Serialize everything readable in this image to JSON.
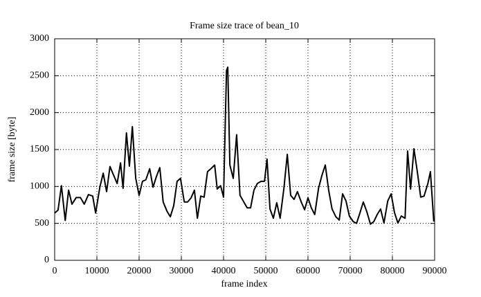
{
  "chart_data": {
    "type": "line",
    "title": "Frame size trace of bean_10",
    "x_label": "frame index",
    "y_label": "frame size [byte]",
    "xlim": [
      0,
      90000
    ],
    "ylim": [
      0,
      3000
    ],
    "xticks": [
      0,
      10000,
      20000,
      30000,
      40000,
      50000,
      60000,
      70000,
      80000,
      90000
    ],
    "yticks": [
      0,
      500,
      1000,
      1500,
      2000,
      2500,
      3000
    ],
    "grid": true,
    "x": [
      0,
      800,
      1600,
      2500,
      3300,
      4100,
      5100,
      6100,
      7000,
      8000,
      9000,
      9700,
      10700,
      11500,
      12300,
      13100,
      13900,
      14800,
      15600,
      16200,
      17000,
      17700,
      18400,
      19200,
      20000,
      20800,
      21600,
      22500,
      23300,
      24100,
      24900,
      25700,
      26600,
      27400,
      28200,
      29000,
      29800,
      30700,
      31500,
      32300,
      33100,
      33800,
      34600,
      35400,
      36200,
      37000,
      37900,
      38500,
      39300,
      40000,
      40700,
      41000,
      41500,
      42300,
      43100,
      43900,
      44800,
      45600,
      46400,
      47200,
      48000,
      48900,
      49700,
      50300,
      51000,
      51800,
      52600,
      53400,
      54300,
      55100,
      55900,
      56700,
      57500,
      58400,
      59200,
      60000,
      60800,
      61600,
      62500,
      63300,
      64100,
      64900,
      65700,
      66600,
      67400,
      68200,
      69000,
      69800,
      70700,
      71500,
      72300,
      73100,
      73900,
      74800,
      75600,
      76400,
      77200,
      78000,
      78900,
      79700,
      80500,
      81300,
      82100,
      83000,
      83600,
      84300,
      85100,
      85900,
      86700,
      87500,
      88400,
      89000,
      89800
    ],
    "series": [
      {
        "color": "#000000",
        "values": [
          640,
          680,
          1010,
          540,
          950,
          760,
          850,
          850,
          760,
          890,
          870,
          640,
          990,
          1180,
          930,
          1270,
          1160,
          1040,
          1320,
          975,
          1725,
          1275,
          1810,
          1110,
          880,
          1070,
          1090,
          1240,
          990,
          1135,
          1255,
          790,
          665,
          590,
          740,
          1070,
          1110,
          790,
          790,
          845,
          950,
          570,
          870,
          855,
          1200,
          1240,
          1290,
          965,
          1010,
          855,
          2570,
          2615,
          1290,
          1110,
          1700,
          880,
          790,
          710,
          710,
          950,
          1040,
          1070,
          1070,
          1370,
          695,
          570,
          780,
          570,
          975,
          1435,
          880,
          825,
          930,
          790,
          685,
          845,
          710,
          620,
          975,
          1150,
          1290,
          950,
          695,
          590,
          545,
          900,
          805,
          600,
          525,
          500,
          640,
          790,
          665,
          490,
          525,
          620,
          695,
          505,
          805,
          900,
          645,
          505,
          600,
          570,
          1480,
          965,
          1510,
          1200,
          855,
          870,
          1040,
          1200,
          525
        ]
      }
    ]
  }
}
